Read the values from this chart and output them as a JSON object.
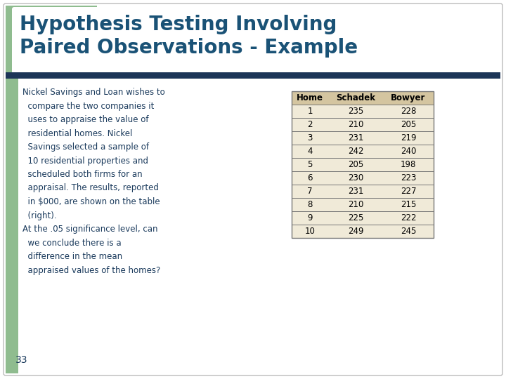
{
  "title_line1": "Hypothesis Testing Involving",
  "title_line2": "Paired Observations - Example",
  "title_color": "#1a5276",
  "bar_color": "#1c3557",
  "bg_color": "#ffffff",
  "left_bar_color": "#8fbc8f",
  "body_text_color": "#1a3a5c",
  "body_text": [
    "Nickel Savings and Loan wishes to",
    "  compare the two companies it",
    "  uses to appraise the value of",
    "  residential homes. Nickel",
    "  Savings selected a sample of",
    "  10 residential properties and",
    "  scheduled both firms for an",
    "  appraisal. The results, reported",
    "  in $000, are shown on the table",
    "  (right).",
    "At the .05 significance level, can",
    "  we conclude there is a",
    "  difference in the mean",
    "  appraised values of the homes?"
  ],
  "table_headers": [
    "Home",
    "Schadek",
    "Bowyer"
  ],
  "table_data": [
    [
      1,
      235,
      228
    ],
    [
      2,
      210,
      205
    ],
    [
      3,
      231,
      219
    ],
    [
      4,
      242,
      240
    ],
    [
      5,
      205,
      198
    ],
    [
      6,
      230,
      223
    ],
    [
      7,
      231,
      227
    ],
    [
      8,
      210,
      215
    ],
    [
      9,
      225,
      222
    ],
    [
      10,
      249,
      245
    ]
  ],
  "table_header_bg": "#d4c5a0",
  "table_row_bg": "#f0ead8",
  "table_border_color": "#777777",
  "footer_number": "33",
  "footer_color": "#1a3a5c"
}
